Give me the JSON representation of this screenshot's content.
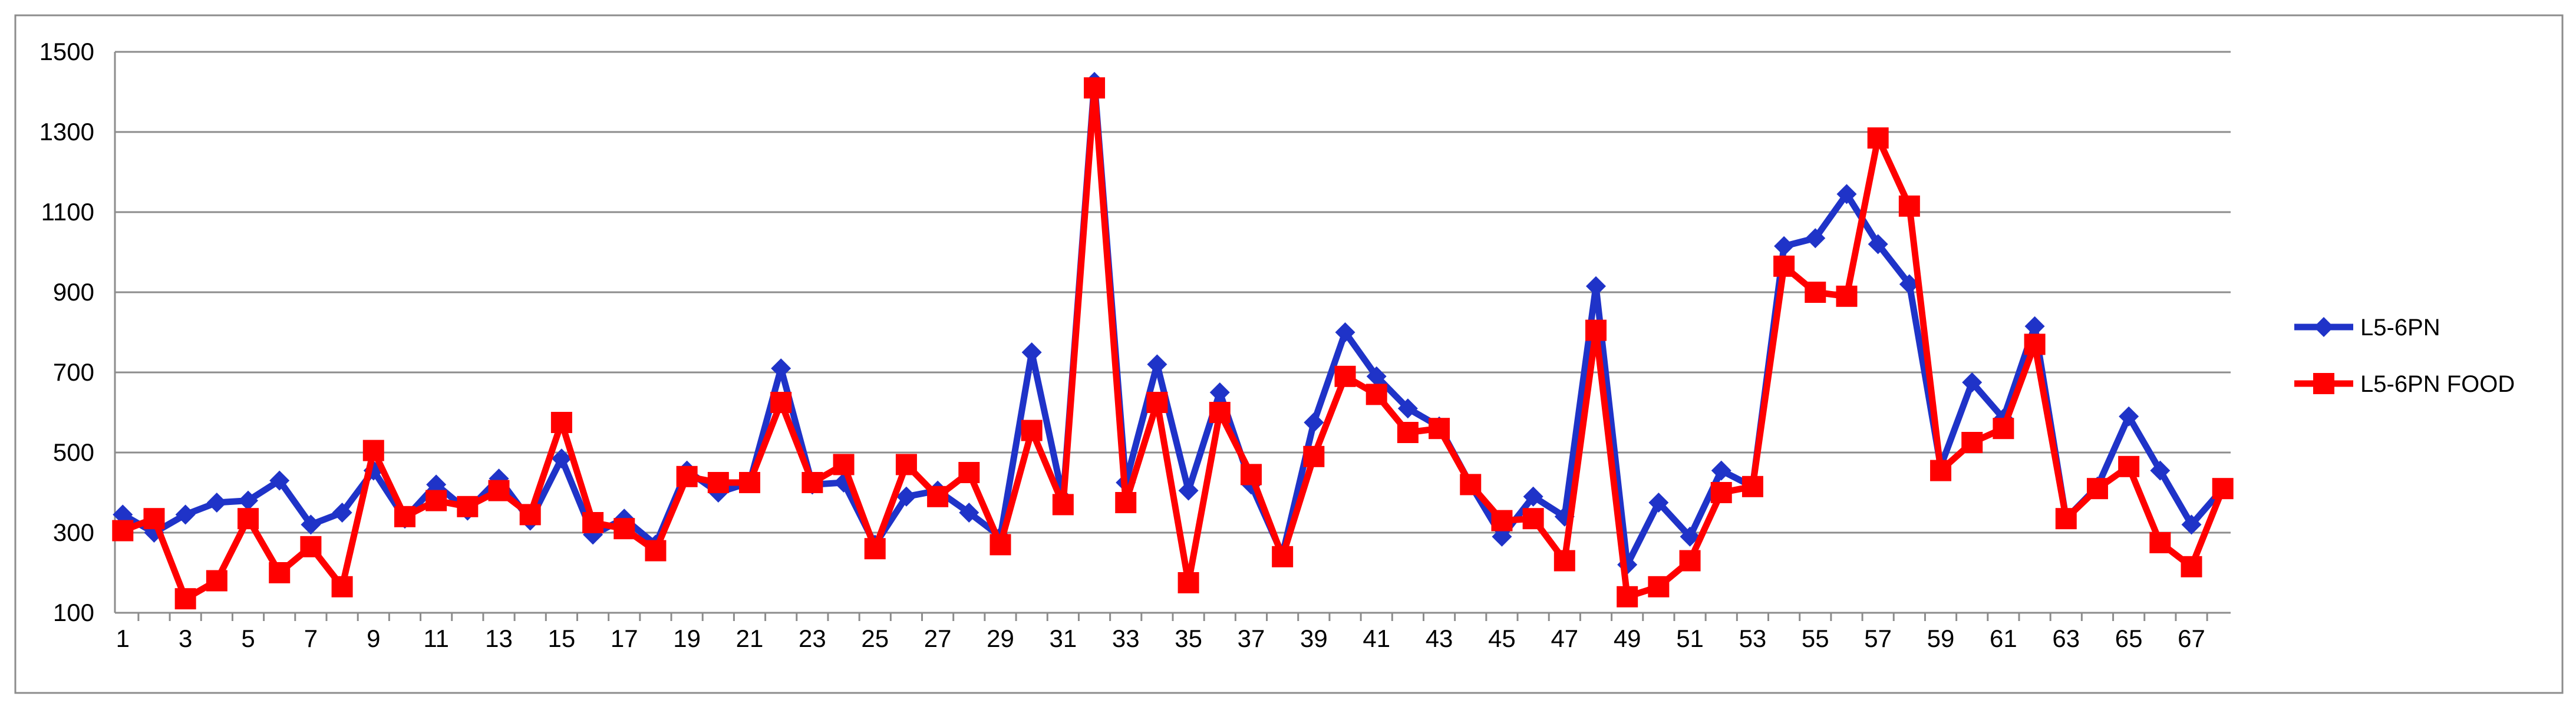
{
  "chart_data": {
    "type": "line",
    "title": "",
    "xlabel": "",
    "ylabel": "",
    "ylim": [
      100,
      1500
    ],
    "y_ticks": [
      "100",
      "300",
      "500",
      "700",
      "900",
      "1100",
      "1300",
      "1500"
    ],
    "x": [
      1,
      2,
      3,
      4,
      5,
      6,
      7,
      8,
      9,
      10,
      11,
      12,
      13,
      14,
      15,
      16,
      17,
      18,
      19,
      20,
      21,
      22,
      23,
      24,
      25,
      26,
      27,
      28,
      29,
      30,
      31,
      32,
      33,
      34,
      35,
      36,
      37,
      38,
      39,
      40,
      41,
      42,
      43,
      44,
      45,
      46,
      47,
      48,
      49,
      50,
      51,
      52,
      53,
      54,
      55,
      56,
      57,
      58,
      59,
      60,
      61,
      62,
      63,
      64,
      65,
      66,
      67,
      68
    ],
    "x_tick_labels": [
      "1",
      "3",
      "5",
      "7",
      "9",
      "11",
      "13",
      "15",
      "17",
      "19",
      "21",
      "23",
      "25",
      "27",
      "29",
      "31",
      "33",
      "35",
      "37",
      "39",
      "41",
      "43",
      "45",
      "47",
      "49",
      "51",
      "53",
      "55",
      "57",
      "59",
      "61",
      "63",
      "65",
      "67"
    ],
    "grid": true,
    "legend_position": "right",
    "series": [
      {
        "name": "L5-6PN",
        "color": "#1f33c8",
        "marker": "diamond",
        "values": [
          345,
          300,
          345,
          375,
          380,
          430,
          320,
          350,
          455,
          335,
          420,
          355,
          435,
          330,
          485,
          295,
          335,
          270,
          455,
          400,
          425,
          710,
          420,
          425,
          270,
          390,
          405,
          350,
          290,
          750,
          385,
          1425,
          425,
          720,
          405,
          650,
          420,
          245,
          575,
          800,
          690,
          610,
          565,
          420,
          290,
          390,
          340,
          915,
          220,
          375,
          290,
          455,
          415,
          1015,
          1035,
          1145,
          1020,
          920,
          465,
          675,
          585,
          815,
          335,
          415,
          590,
          455,
          320,
          410
        ]
      },
      {
        "name": "L5-6PN FOOD",
        "color": "#ff0000",
        "marker": "square",
        "values": [
          305,
          335,
          135,
          180,
          335,
          200,
          265,
          165,
          505,
          340,
          380,
          365,
          405,
          345,
          575,
          325,
          310,
          255,
          440,
          425,
          425,
          625,
          425,
          470,
          260,
          470,
          390,
          450,
          270,
          555,
          370,
          1410,
          375,
          625,
          175,
          600,
          445,
          240,
          490,
          690,
          645,
          550,
          560,
          420,
          330,
          335,
          230,
          805,
          140,
          165,
          230,
          400,
          415,
          965,
          900,
          890,
          1285,
          1115,
          455,
          525,
          560,
          770,
          335,
          410,
          465,
          275,
          215,
          410
        ]
      }
    ]
  }
}
